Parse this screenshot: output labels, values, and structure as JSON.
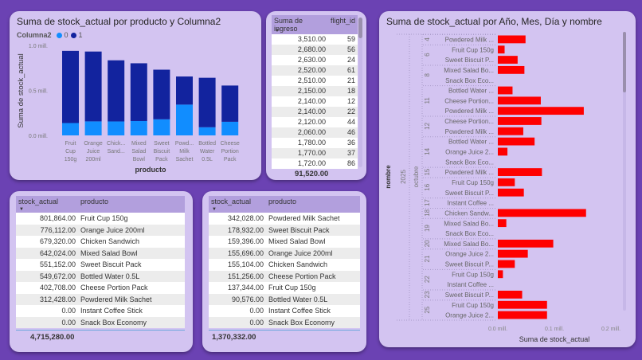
{
  "colors": {
    "background": "#6b42b3",
    "card": "#d3c4f1",
    "series0": "#118dff",
    "series1": "#12239e",
    "bar": "#ff0000"
  },
  "stacked_chart": {
    "title": "Suma de stock_actual por producto y Columna2",
    "legend_title": "Columna2",
    "chart_data": {
      "type": "bar",
      "stacked": true,
      "categories": [
        "Fruit Cup 150g",
        "Orange Juice 200ml",
        "Chick... Sand...",
        "Mixed Salad Bowl",
        "Sweet Biscuit Pack",
        "Powd... Milk Sachet",
        "Bottled Water 0.5L",
        "Cheese Portion Pack"
      ],
      "series": [
        {
          "name": "0",
          "color": "#118dff",
          "values": [
            137344,
            155696,
            155104,
            159396,
            178932,
            342028,
            90576,
            151256
          ]
        },
        {
          "name": "1",
          "color": "#12239e",
          "values": [
            801864,
            776112,
            679320,
            642024,
            551152,
            312428,
            549672,
            402708
          ]
        }
      ],
      "xlabel": "producto",
      "ylabel": "Suma de stock_actual",
      "yticks": [
        "0.0 mill.",
        "0.5 mill.",
        "1.0 mill."
      ],
      "ylim": [
        0,
        1000000
      ],
      "legend": "top-left"
    }
  },
  "flight_table": {
    "headers": [
      "Suma de ingreso",
      "flight_id"
    ],
    "rows": [
      [
        "3,510.00",
        "59"
      ],
      [
        "2,680.00",
        "56"
      ],
      [
        "2,630.00",
        "24"
      ],
      [
        "2,520.00",
        "61"
      ],
      [
        "2,510.00",
        "21"
      ],
      [
        "2,150.00",
        "18"
      ],
      [
        "2,140.00",
        "12"
      ],
      [
        "2,140.00",
        "22"
      ],
      [
        "2,120.00",
        "44"
      ],
      [
        "2,060.00",
        "46"
      ],
      [
        "1,780.00",
        "36"
      ],
      [
        "1,770.00",
        "37"
      ],
      [
        "1,720.00",
        "86"
      ]
    ],
    "total": "91,520.00"
  },
  "table1": {
    "headers": [
      "stock_actual",
      "producto"
    ],
    "rows": [
      [
        "801,864.00",
        "Fruit Cup 150g"
      ],
      [
        "776,112.00",
        "Orange Juice 200ml"
      ],
      [
        "679,320.00",
        "Chicken Sandwich"
      ],
      [
        "642,024.00",
        "Mixed Salad Bowl"
      ],
      [
        "551,152.00",
        "Sweet Biscuit Pack"
      ],
      [
        "549,672.00",
        "Bottled Water 0.5L"
      ],
      [
        "402,708.00",
        "Cheese Portion Pack"
      ],
      [
        "312,428.00",
        "Powdered Milk Sachet"
      ],
      [
        "0.00",
        "Instant Coffee Stick"
      ],
      [
        "0.00",
        "Snack Box Economy"
      ]
    ],
    "total": "4,715,280.00"
  },
  "table2": {
    "headers": [
      "stock_actual",
      "producto"
    ],
    "rows": [
      [
        "342,028.00",
        "Powdered Milk Sachet"
      ],
      [
        "178,932.00",
        "Sweet Biscuit Pack"
      ],
      [
        "159,396.00",
        "Mixed Salad Bowl"
      ],
      [
        "155,696.00",
        "Orange Juice 200ml"
      ],
      [
        "155,104.00",
        "Chicken Sandwich"
      ],
      [
        "151,256.00",
        "Cheese Portion Pack"
      ],
      [
        "137,344.00",
        "Fruit Cup 150g"
      ],
      [
        "90,576.00",
        "Bottled Water 0.5L"
      ],
      [
        "0.00",
        "Instant Coffee Stick"
      ],
      [
        "0.00",
        "Snack Box Economy"
      ]
    ],
    "total": "1,370,332.00"
  },
  "hier_chart": {
    "title": "Suma de stock_actual por Año, Mes, Día y nombre",
    "chart_data": {
      "type": "bar",
      "orientation": "horizontal",
      "ylabel": "nombre",
      "year": "2025",
      "month": "octubre",
      "xlabel": "Suma de stock_actual",
      "xticks": [
        "0.0 mill.",
        "0.1 mill.",
        "0.2 mill."
      ],
      "xlim": [
        0,
        200000
      ],
      "groups": [
        {
          "day": "4",
          "items": [
            [
              "Powdered Milk ...",
              49000
            ]
          ]
        },
        {
          "day": "6",
          "items": [
            [
              "Fruit Cup 150g",
              12000
            ],
            [
              "Sweet Biscuit P...",
              35000
            ]
          ]
        },
        {
          "day": "8",
          "items": [
            [
              "Mixed Salad Bo...",
              47000
            ],
            [
              "Snack Box Eco...",
              0
            ]
          ]
        },
        {
          "day": "11",
          "items": [
            [
              "Bottled Water ...",
              26000
            ],
            [
              "Cheese Portion...",
              76000
            ],
            [
              "Powdered Milk ...",
              152000
            ]
          ]
        },
        {
          "day": "12",
          "items": [
            [
              "Cheese Portion...",
              77000
            ],
            [
              "Powdered Milk ...",
              45000
            ]
          ]
        },
        {
          "day": "14",
          "items": [
            [
              "Bottled Water ...",
              65000
            ],
            [
              "Orange Juice 2...",
              17000
            ],
            [
              "Snack Box Eco...",
              0
            ]
          ]
        },
        {
          "day": "15",
          "items": [
            [
              "Powdered Milk ...",
              78000
            ]
          ]
        },
        {
          "day": "16",
          "items": [
            [
              "Fruit Cup 150g",
              30000
            ],
            [
              "Sweet Biscuit P...",
              46000
            ]
          ]
        },
        {
          "day": "17",
          "items": [
            [
              "Instant Coffee ...",
              0
            ]
          ]
        },
        {
          "day": "18",
          "items": [
            [
              "Chicken Sandw...",
              156000
            ]
          ]
        },
        {
          "day": "19",
          "items": [
            [
              "Mixed Salad Bo...",
              15000
            ],
            [
              "Snack Box Eco...",
              0
            ]
          ]
        },
        {
          "day": "20",
          "items": [
            [
              "Mixed Salad Bo...",
              98000
            ]
          ]
        },
        {
          "day": "21",
          "items": [
            [
              "Orange Juice 2...",
              53000
            ],
            [
              "Sweet Biscuit P...",
              30000
            ]
          ]
        },
        {
          "day": "22",
          "items": [
            [
              "Fruit Cup 150g",
              9000
            ],
            [
              "Instant Coffee ...",
              0
            ]
          ]
        },
        {
          "day": "23",
          "items": [
            [
              "Sweet Biscuit P...",
              43000
            ]
          ]
        },
        {
          "day": "25",
          "items": [
            [
              "Fruit Cup 150g",
              87000
            ],
            [
              "Orange Juice 2...",
              87000
            ]
          ]
        }
      ]
    }
  }
}
